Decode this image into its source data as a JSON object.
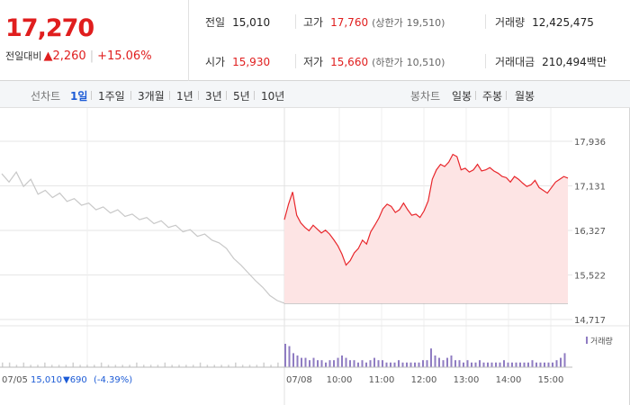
{
  "quote": {
    "current_price": "17,270",
    "change_label": "전일대비",
    "change_arrow": "▲",
    "change_amount": "2,260",
    "change_pct": "+15.06%"
  },
  "stats": {
    "prev_close_label": "전일",
    "prev_close": "15,010",
    "high_label": "고가",
    "high": "17,760",
    "upper_limit_label": "(상한가",
    "upper_limit": "19,510)",
    "volume_label": "거래량",
    "volume": "12,425,475",
    "open_label": "시가",
    "open": "15,930",
    "low_label": "저가",
    "low": "15,660",
    "lower_limit_label": "(하한가",
    "lower_limit": "10,510)",
    "trade_value_label": "거래대금",
    "trade_value": "210,494",
    "trade_value_unit": "백만"
  },
  "period_bar": {
    "line_chart_label": "선차트",
    "line_options": [
      "1일",
      "1주일",
      "3개월",
      "1년",
      "3년",
      "5년",
      "10년"
    ],
    "active_option": "1일",
    "candle_chart_label": "봉차트",
    "candle_options": [
      "일봉",
      "주봉",
      "월봉"
    ]
  },
  "chart_data": {
    "type": "line",
    "title": "",
    "colors": {
      "today_line": "#e8262b",
      "today_fill": "#fde4e4",
      "prev_line": "#c8c8c8",
      "volume": "#8f7cc2",
      "grid": "#e6e6e6"
    },
    "y_ticks": [
      "17,936",
      "17,131",
      "16,327",
      "15,522",
      "14,717"
    ],
    "ylim": [
      14717,
      17936
    ],
    "prev_close": 15010,
    "prev_day": {
      "date": "07/05",
      "summary_close": "15,010",
      "summary_change": "▼690",
      "summary_pct": "(-4.39%)",
      "values": [
        17350,
        17200,
        17380,
        17120,
        17250,
        16980,
        17050,
        16920,
        17000,
        16850,
        16900,
        16780,
        16820,
        16700,
        16750,
        16640,
        16700,
        16580,
        16620,
        16520,
        16560,
        16450,
        16500,
        16380,
        16420,
        16300,
        16340,
        16220,
        16260,
        16150,
        16100,
        16000,
        15820,
        15700,
        15560,
        15420,
        15300,
        15150,
        15060,
        15010
      ]
    },
    "today": {
      "date": "07/08",
      "time_labels": [
        "10:00",
        "11:00",
        "12:00",
        "13:00",
        "14:00",
        "15:00"
      ],
      "values": [
        16520,
        16800,
        17020,
        16600,
        16460,
        16380,
        16320,
        16420,
        16350,
        16280,
        16330,
        16260,
        16160,
        16050,
        15900,
        15700,
        15780,
        15920,
        16000,
        16150,
        16080,
        16300,
        16420,
        16550,
        16720,
        16800,
        16760,
        16650,
        16700,
        16820,
        16700,
        16600,
        16620,
        16560,
        16680,
        16860,
        17250,
        17420,
        17520,
        17480,
        17560,
        17700,
        17660,
        17420,
        17450,
        17380,
        17420,
        17520,
        17400,
        17420,
        17460,
        17400,
        17360,
        17300,
        17280,
        17200,
        17300,
        17250,
        17180,
        17120,
        17150,
        17230,
        17100,
        17050,
        17000,
        17100,
        17200,
        17250,
        17300,
        17270
      ]
    },
    "volume_legend": "거래량",
    "prev_volume": [
      2,
      2,
      1,
      2,
      1,
      1,
      2,
      1,
      1,
      1,
      2,
      1,
      1,
      1,
      2,
      1,
      1,
      1,
      1,
      2,
      1,
      1,
      1,
      2,
      1,
      1,
      1,
      1,
      2,
      1,
      1,
      1,
      1,
      2,
      1,
      1,
      1,
      2,
      1,
      2
    ],
    "today_volume": [
      10,
      9,
      6,
      5,
      4,
      4,
      3,
      4,
      3,
      3,
      2,
      3,
      3,
      4,
      5,
      4,
      3,
      3,
      2,
      3,
      2,
      3,
      4,
      3,
      3,
      2,
      2,
      2,
      3,
      2,
      2,
      2,
      2,
      2,
      3,
      3,
      8,
      5,
      4,
      3,
      4,
      5,
      3,
      3,
      2,
      3,
      2,
      2,
      3,
      2,
      2,
      2,
      2,
      2,
      3,
      2,
      2,
      2,
      2,
      2,
      2,
      3,
      2,
      2,
      2,
      2,
      2,
      3,
      4,
      6
    ]
  }
}
